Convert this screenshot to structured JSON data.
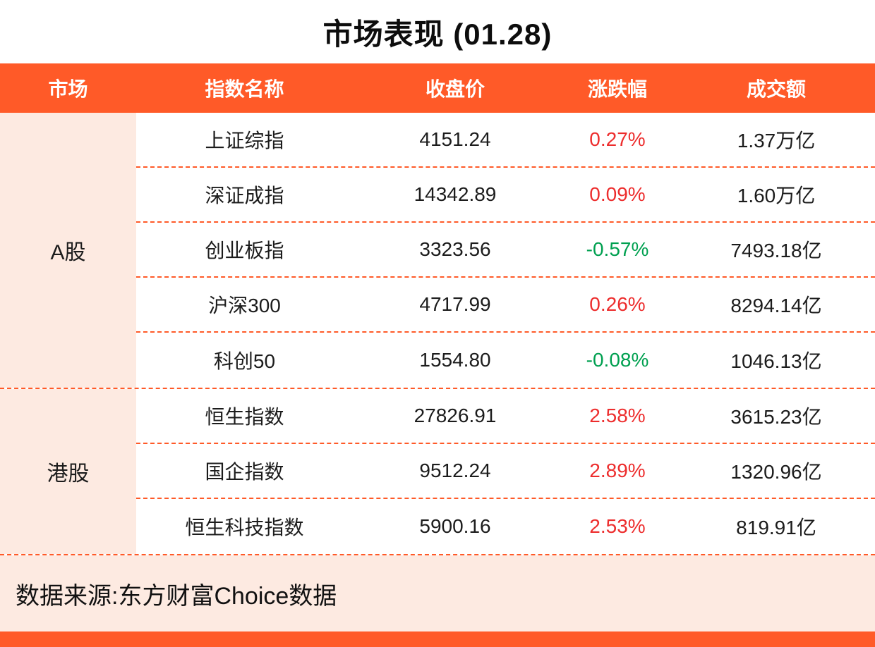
{
  "title": "市场表现 (01.28)",
  "colors": {
    "accent": "#FF5A28",
    "row_background": "#FDEAE1",
    "up_color": "#ED2D2D",
    "down_color": "#00A050"
  },
  "footer": {
    "source": "数据来源:东方财富Choice数据"
  },
  "chart_data": {
    "type": "table",
    "title": "市场表现 (01.28)",
    "columns": [
      "市场",
      "指数名称",
      "收盘价",
      "涨跌幅",
      "成交额"
    ],
    "groups": [
      {
        "market": "A股",
        "rows": [
          {
            "name": "上证综指",
            "close": "4151.24",
            "change": "0.27%",
            "direction": "up",
            "turnover": "1.37万亿"
          },
          {
            "name": "深证成指",
            "close": "14342.89",
            "change": "0.09%",
            "direction": "up",
            "turnover": "1.60万亿"
          },
          {
            "name": "创业板指",
            "close": "3323.56",
            "change": "-0.57%",
            "direction": "down",
            "turnover": "7493.18亿"
          },
          {
            "name": "沪深300",
            "close": "4717.99",
            "change": "0.26%",
            "direction": "up",
            "turnover": "8294.14亿"
          },
          {
            "name": "科创50",
            "close": "1554.80",
            "change": "-0.08%",
            "direction": "down",
            "turnover": "1046.13亿"
          }
        ]
      },
      {
        "market": "港股",
        "rows": [
          {
            "name": "恒生指数",
            "close": "27826.91",
            "change": "2.58%",
            "direction": "up",
            "turnover": "3615.23亿"
          },
          {
            "name": "国企指数",
            "close": "9512.24",
            "change": "2.89%",
            "direction": "up",
            "turnover": "1320.96亿"
          },
          {
            "name": "恒生科技指数",
            "close": "5900.16",
            "change": "2.53%",
            "direction": "up",
            "turnover": "819.91亿"
          }
        ]
      }
    ]
  }
}
